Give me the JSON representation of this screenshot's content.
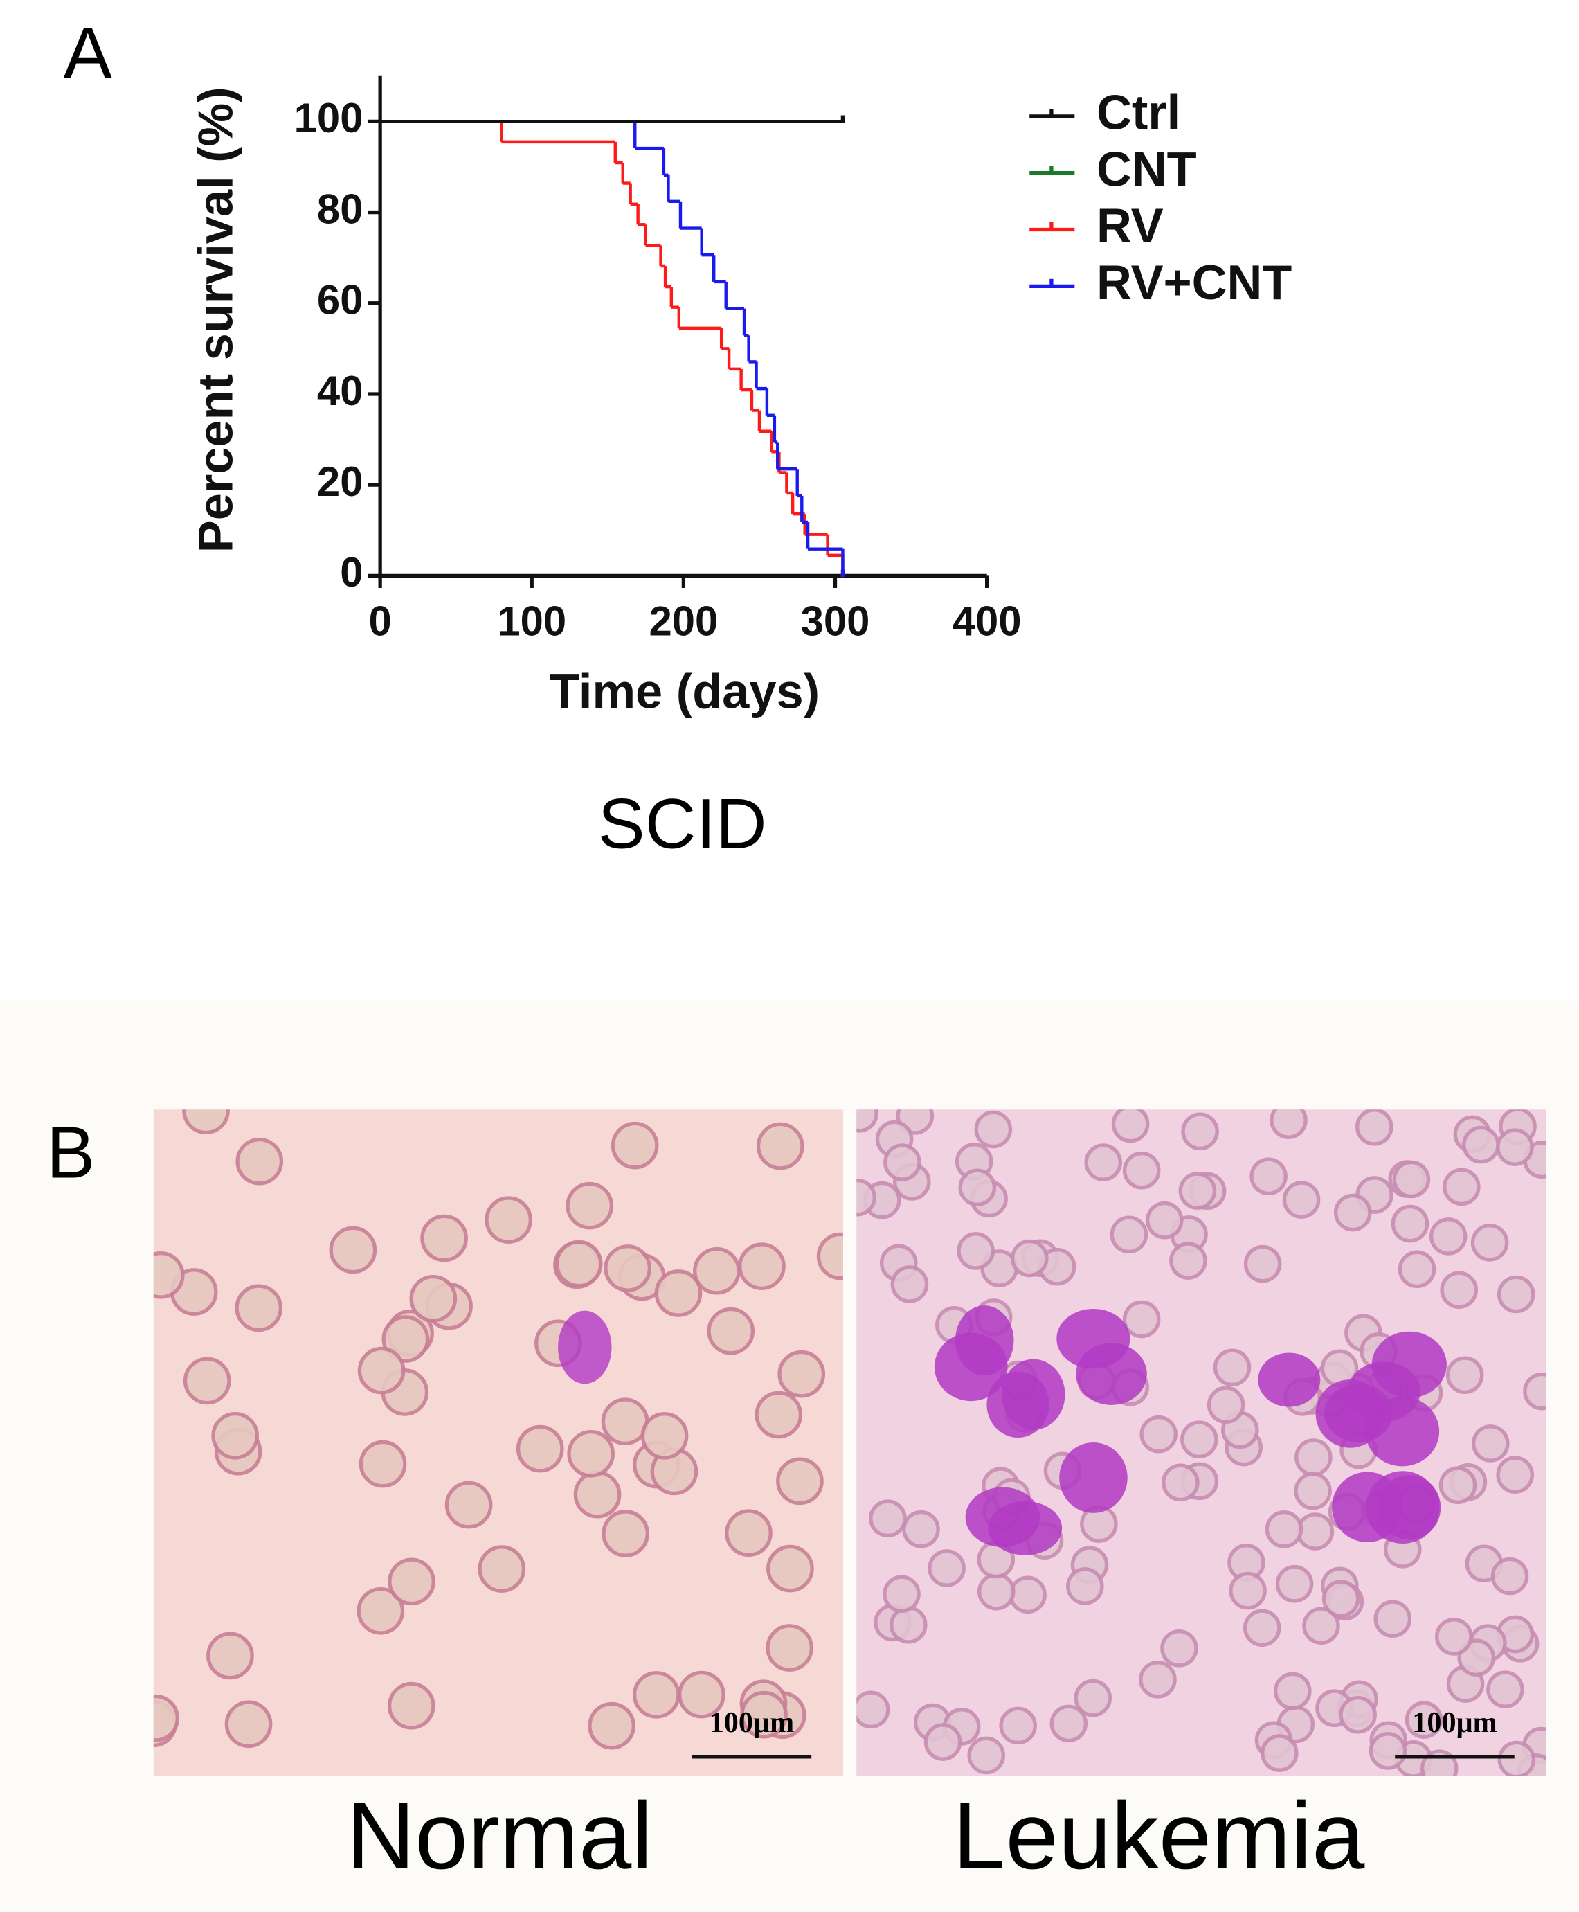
{
  "panel_labels": [
    "A",
    "B"
  ],
  "chart_data": {
    "type": "survival-step",
    "caption": "SCID",
    "x_label": "Time (days)",
    "y_label": "Percent survival (%)",
    "xlim": [
      0,
      400
    ],
    "ylim": [
      0,
      110
    ],
    "xticks": [
      0,
      100,
      200,
      300,
      400
    ],
    "yticks": [
      0,
      20,
      40,
      60,
      80,
      100
    ],
    "series": [
      {
        "name": "Ctrl",
        "color": "#111111",
        "x": [
          0,
          305
        ],
        "values": [
          100,
          100
        ]
      },
      {
        "name": "CNT",
        "color": "#1a7a2a",
        "x": [
          0,
          305
        ],
        "values": [
          100,
          100
        ]
      },
      {
        "name": "RV",
        "color": "#ff1a1a",
        "x": [
          0,
          80,
          155,
          160,
          165,
          170,
          175,
          185,
          188,
          192,
          197,
          225,
          230,
          238,
          245,
          250,
          258,
          263,
          268,
          272,
          280,
          295,
          305
        ],
        "values": [
          100,
          95.5,
          90.9,
          86.4,
          81.8,
          77.3,
          72.7,
          68.2,
          63.6,
          59.1,
          54.5,
          50,
          45.5,
          40.9,
          36.4,
          31.8,
          27.3,
          22.7,
          18.2,
          13.6,
          9.1,
          4.5,
          0
        ]
      },
      {
        "name": "RV+CNT",
        "color": "#1a1aee",
        "x": [
          0,
          168,
          187,
          190,
          198,
          212,
          220,
          228,
          240,
          243,
          248,
          255,
          260,
          262,
          275,
          278,
          282,
          305
        ],
        "values": [
          100,
          94.1,
          88.2,
          82.4,
          76.5,
          70.6,
          64.7,
          58.8,
          52.9,
          47.1,
          41.2,
          35.3,
          29.4,
          23.5,
          17.6,
          11.8,
          5.9,
          0
        ]
      }
    ]
  },
  "images": [
    {
      "label": "Normal",
      "scale_bar": "100μm"
    },
    {
      "label": "Leukemia",
      "scale_bar": "100μm"
    }
  ]
}
